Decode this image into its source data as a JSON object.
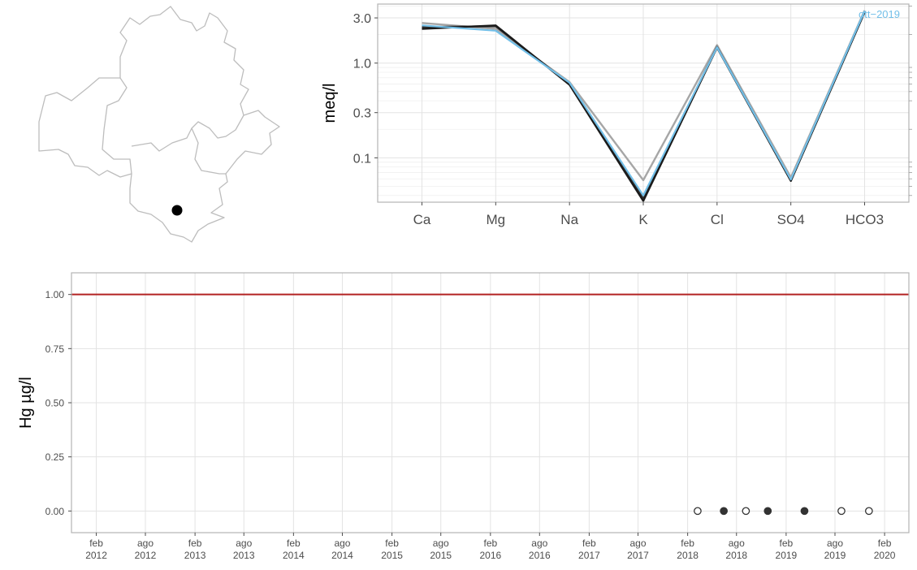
{
  "colors": {
    "grid": "#e3e3e3",
    "frame": "#b3b3b3",
    "map_outline": "#bdbdbd",
    "marker": "#000000",
    "threshold": "#b22222",
    "highlight": "#72bfe8",
    "line_dark": "#1a1a1a",
    "line_grey": "#a6a6a6",
    "point_filled": "#333333"
  },
  "map": {
    "marker": "station-location",
    "outline": "municipalities-boundaries"
  },
  "chart_data": [
    {
      "type": "line",
      "ylabel": "meq/l",
      "yscale": "log",
      "ylim": [
        0.034,
        4.2
      ],
      "yticks": [
        0.1,
        0.3,
        1.0,
        3.0
      ],
      "ytick_labels": [
        "0.1",
        "0.3",
        "1.0",
        "3.0"
      ],
      "categories": [
        "Ca",
        "Mg",
        "Na",
        "K",
        "Cl",
        "SO4",
        "HCO3"
      ],
      "annotation": "ott−2019",
      "grid": true,
      "series": [
        {
          "color": "#a6a6a6",
          "values": [
            2.65,
            2.3,
            0.63,
            0.058,
            1.55,
            0.062,
            3.6
          ]
        },
        {
          "color": "#333333",
          "values": [
            2.4,
            2.45,
            0.6,
            0.037,
            1.48,
            0.058,
            3.5
          ]
        },
        {
          "color": "#1a1a1a",
          "values": [
            2.3,
            2.5,
            0.59,
            0.035,
            1.46,
            0.057,
            3.45
          ]
        },
        {
          "color": "#72bfe8",
          "values": [
            2.5,
            2.2,
            0.62,
            0.04,
            1.47,
            0.059,
            3.55
          ]
        }
      ]
    },
    {
      "type": "scatter",
      "ylabel": "Hg µg/l",
      "ylim": [
        -0.1,
        1.1
      ],
      "yticks": [
        0,
        0.25,
        0.5,
        0.75,
        1.0
      ],
      "ytick_labels": [
        "0.00",
        "0.25",
        "0.50",
        "0.75",
        "1.00"
      ],
      "xlim": [
        "2011-11-01",
        "2020-05-01"
      ],
      "xticks": [
        "2012-02-01",
        "2012-08-01",
        "2013-02-01",
        "2013-08-01",
        "2014-02-01",
        "2014-08-01",
        "2015-02-01",
        "2015-08-01",
        "2016-02-01",
        "2016-08-01",
        "2017-02-01",
        "2017-08-01",
        "2018-02-01",
        "2018-08-01",
        "2019-02-01",
        "2019-08-01",
        "2020-02-01"
      ],
      "xtick_labels": [
        [
          "feb",
          "2012"
        ],
        [
          "ago",
          "2012"
        ],
        [
          "feb",
          "2013"
        ],
        [
          "ago",
          "2013"
        ],
        [
          "feb",
          "2014"
        ],
        [
          "ago",
          "2014"
        ],
        [
          "feb",
          "2015"
        ],
        [
          "ago",
          "2015"
        ],
        [
          "feb",
          "2016"
        ],
        [
          "ago",
          "2016"
        ],
        [
          "feb",
          "2017"
        ],
        [
          "ago",
          "2017"
        ],
        [
          "feb",
          "2018"
        ],
        [
          "ago",
          "2018"
        ],
        [
          "feb",
          "2019"
        ],
        [
          "ago",
          "2019"
        ],
        [
          "feb",
          "2020"
        ]
      ],
      "threshold": 1.0,
      "grid": true,
      "points": [
        {
          "x": "2018-03-10",
          "y": 0,
          "filled": false
        },
        {
          "x": "2018-06-15",
          "y": 0,
          "filled": true
        },
        {
          "x": "2018-09-05",
          "y": 0,
          "filled": false
        },
        {
          "x": "2018-11-25",
          "y": 0,
          "filled": true
        },
        {
          "x": "2019-04-10",
          "y": 0,
          "filled": true
        },
        {
          "x": "2019-08-25",
          "y": 0,
          "filled": false
        },
        {
          "x": "2019-12-05",
          "y": 0,
          "filled": false
        }
      ]
    }
  ]
}
